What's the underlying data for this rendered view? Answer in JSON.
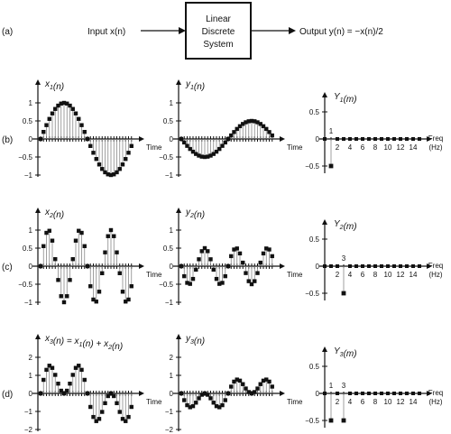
{
  "system": {
    "part_label": "(a)",
    "input_text": "Input x(n)",
    "box_lines": [
      "Linear",
      "Discrete",
      "System"
    ],
    "output_text": "Output y(n) = −x(n)/2"
  },
  "rows": [
    {
      "label": "(b)",
      "x_title": "x1(n)",
      "y_title": "y1(n)",
      "Y_title": "Y1(m)",
      "x_yticks": [
        "1",
        "0.5",
        "0",
        "−0.5",
        "−1"
      ],
      "y_yticks": [
        "1",
        "0.5",
        "0",
        "−0.5",
        "−1"
      ],
      "Y_yticks": [
        "0.5",
        "0",
        "−0.5"
      ],
      "time_label": "Time",
      "freq_label": [
        "Freq",
        "(Hz)"
      ],
      "freq_ticks": [
        "2",
        "4",
        "6",
        "8",
        "10",
        "12",
        "14"
      ],
      "spike_labels": [
        "1"
      ]
    },
    {
      "label": "(c)",
      "x_title": "x2(n)",
      "y_title": "y2(n)",
      "Y_title": "Y2(m)",
      "x_yticks": [
        "1",
        "0.5",
        "0",
        "−0.5",
        "−1"
      ],
      "y_yticks": [
        "1",
        "0.5",
        "0",
        "−0.5",
        "−1"
      ],
      "Y_yticks": [
        "0.5",
        "0",
        "−0.5"
      ],
      "time_label": "Time",
      "freq_label": [
        "Freq",
        "(Hz)"
      ],
      "freq_ticks": [
        "2",
        "4",
        "6",
        "8",
        "10",
        "12",
        "14"
      ],
      "spike_labels": [
        "3"
      ]
    },
    {
      "label": "(d)",
      "x_title": "x3(n) = x1(n) + x2(n)",
      "y_title": "y3(n)",
      "Y_title": "Y3(m)",
      "x_yticks": [
        "2",
        "1",
        "0",
        "−1",
        "−2"
      ],
      "y_yticks": [
        "2",
        "1",
        "0",
        "−1",
        "−2"
      ],
      "Y_yticks": [
        "0.5",
        "0",
        "−0.5"
      ],
      "time_label": "Time",
      "freq_label": [
        "Freq",
        "(Hz)"
      ],
      "freq_ticks": [
        "2",
        "4",
        "6",
        "8",
        "10",
        "12",
        "14"
      ],
      "spike_labels": [
        "1",
        "3"
      ]
    }
  ],
  "chart_data": [
    {
      "type": "scatter",
      "name": "x1(n)",
      "x_samples": 32,
      "ylim": [
        -1,
        1
      ],
      "signal": "sin(2πn/32)",
      "amplitude": 1,
      "frequency_cycles": 1
    },
    {
      "type": "scatter",
      "name": "y1(n)",
      "x_samples": 32,
      "ylim": [
        -1,
        1
      ],
      "signal": "−0.5·sin(2πn/32)",
      "amplitude": -0.5,
      "frequency_cycles": 1
    },
    {
      "type": "bar",
      "name": "Y1(m)",
      "ylim": [
        -0.5,
        0.5
      ],
      "bins": 16,
      "values_at": {
        "1": -0.5
      }
    },
    {
      "type": "scatter",
      "name": "x2(n)",
      "x_samples": 32,
      "ylim": [
        -1,
        1
      ],
      "signal": "sin(2π·3n/32)",
      "amplitude": 1,
      "frequency_cycles": 3
    },
    {
      "type": "scatter",
      "name": "y2(n)",
      "x_samples": 32,
      "ylim": [
        -1,
        1
      ],
      "signal": "−0.5·sin(2π·3n/32)",
      "amplitude": -0.5,
      "frequency_cycles": 3
    },
    {
      "type": "bar",
      "name": "Y2(m)",
      "ylim": [
        -0.5,
        0.5
      ],
      "bins": 16,
      "values_at": {
        "3": -0.5
      }
    },
    {
      "type": "scatter",
      "name": "x3(n)",
      "x_samples": 32,
      "ylim": [
        -2,
        2
      ],
      "signal": "x1(n) + x2(n)",
      "frequency_cycles": [
        1,
        3
      ]
    },
    {
      "type": "scatter",
      "name": "y3(n)",
      "x_samples": 32,
      "ylim": [
        -2,
        2
      ],
      "signal": "−0.5·(x1(n) + x2(n))",
      "frequency_cycles": [
        1,
        3
      ]
    },
    {
      "type": "bar",
      "name": "Y3(m)",
      "ylim": [
        -0.5,
        0.5
      ],
      "bins": 16,
      "values_at": {
        "1": -0.5,
        "3": -0.5
      }
    }
  ]
}
